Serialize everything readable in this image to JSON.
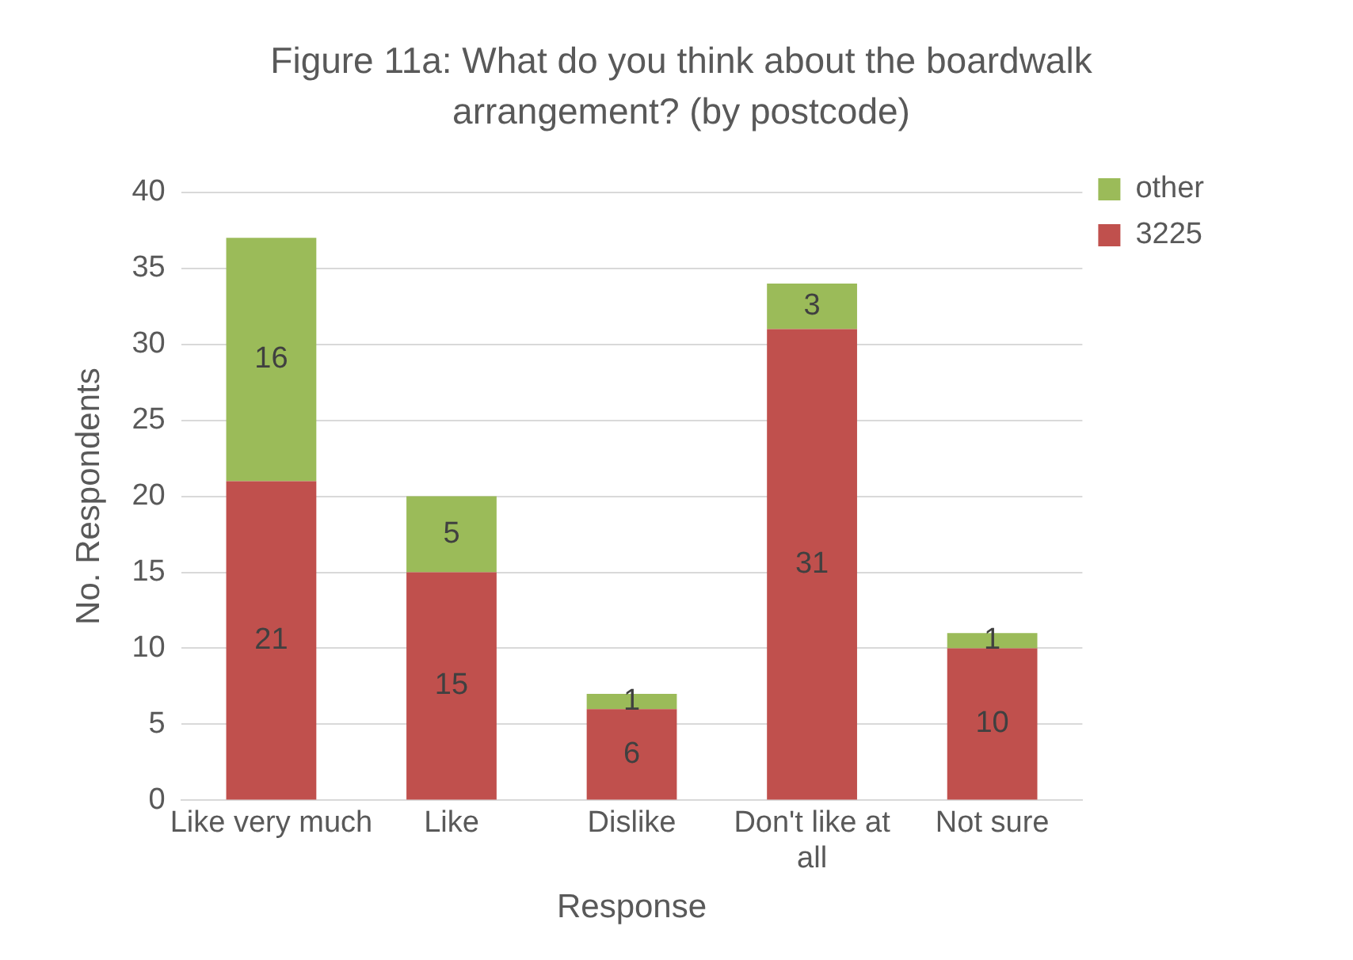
{
  "chart_data": {
    "type": "bar",
    "title": "Figure 11a: What do you think about the boardwalk arrangement? (by postcode)",
    "xlabel": "Response",
    "ylabel": "No. Respondents",
    "categories": [
      "Like very much",
      "Like",
      "Dislike",
      "Don't like at all",
      "Not sure"
    ],
    "series": [
      {
        "name": "3225",
        "color": "#c0504d",
        "values": [
          21,
          15,
          6,
          31,
          10
        ]
      },
      {
        "name": "other",
        "color": "#9bbb59",
        "values": [
          16,
          5,
          1,
          3,
          1
        ]
      }
    ],
    "stacked": true,
    "ylim": [
      0,
      40
    ],
    "yticks": [
      0,
      5,
      10,
      15,
      20,
      25,
      30,
      35,
      40
    ],
    "grid": "y",
    "legend": "top right",
    "data_labels": true
  }
}
